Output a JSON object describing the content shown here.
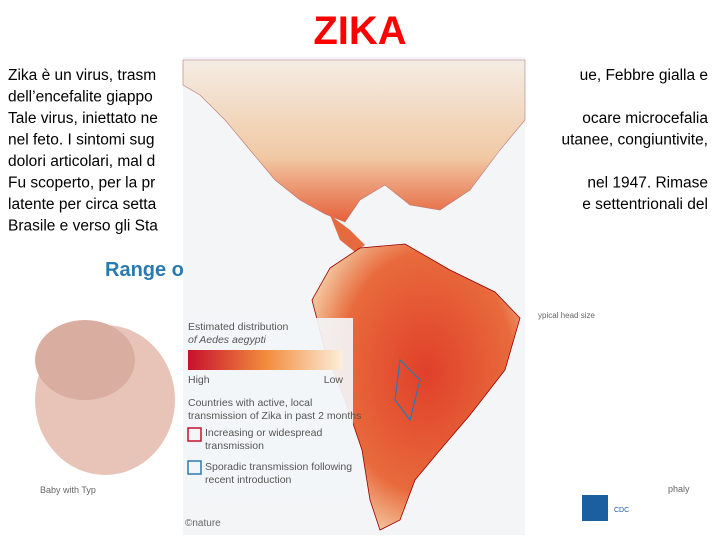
{
  "title": "ZIKA",
  "body_lines": [
    {
      "left": "Zika è un virus, trasm",
      "right": "ue, Febbre gialla e"
    },
    {
      "left": "dell’encefalite giappo"
    },
    {
      "left": "Tale virus, iniettato ne",
      "right": "ocare microcefalia"
    },
    {
      "left": "nel feto. I sintomi sug",
      "right": "utanee, congiuntivite,"
    },
    {
      "left": "dolori articolari, mal d"
    },
    {
      "left": "Fu scoperto, per la pr",
      "right": "nel 1947. Rimase"
    },
    {
      "left": "latente per circa setta",
      "right": "e settentrionali del"
    },
    {
      "left": "Brasile e verso gli Sta"
    }
  ],
  "background": {
    "heading": "Range o",
    "caption_left": "Baby with Typ",
    "caption_top_right": "ypical head size",
    "caption_right": "phaly",
    "credit": "©nature",
    "logo": "CDC"
  },
  "map_legend": {
    "distribution_line1": "Estimated distribution",
    "distribution_line2": "of Aedes aegypti",
    "high": "High",
    "low": "Low",
    "countries_line1": "Countries with active, local",
    "countries_line2": "transmission of Zika in past 2 months",
    "increasing_line1": "Increasing or widespread",
    "increasing_line2": "transmission",
    "sporadic_line1": "Sporadic transmission following",
    "sporadic_line2": "recent introduction"
  }
}
